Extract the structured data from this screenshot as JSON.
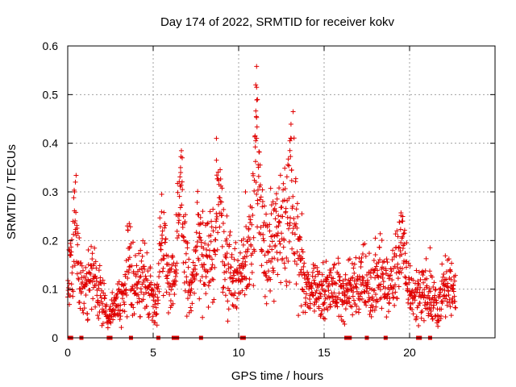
{
  "chart_data": {
    "type": "scatter",
    "title": "Day 174 of 2022, SRMTID for receiver kokv",
    "xlabel": "GPS time / hours",
    "ylabel": "SRMTID / TECUs",
    "xlim": [
      0,
      25
    ],
    "ylim": [
      0,
      0.6
    ],
    "xticks": [
      0,
      5,
      10,
      15,
      20
    ],
    "xtick_labels": [
      "0",
      "5",
      "10",
      "15",
      "20"
    ],
    "yticks": [
      0,
      0.1,
      0.2,
      0.3,
      0.4,
      0.5,
      0.6
    ],
    "ytick_labels": [
      "0",
      "0.1",
      "0.2",
      "0.3",
      "0.4",
      "0.5",
      "0.6"
    ],
    "grid": true,
    "marker": "plus",
    "color": "#e00000",
    "zero_value_hours": [
      0.1,
      0.2,
      0.8,
      2.4,
      2.5,
      3.7,
      5.3,
      6.2,
      6.4,
      7.8,
      10.2,
      10.3,
      16.3,
      16.5,
      17.5,
      18.6,
      20.5,
      20.6,
      21.2
    ],
    "envelope": {
      "description": "approximate local mean and spread of the SRMTID series (TECUs)",
      "x": [
        0.0,
        0.3,
        0.5,
        0.7,
        1.0,
        1.5,
        2.0,
        2.3,
        2.8,
        3.3,
        3.6,
        4.0,
        4.5,
        4.9,
        5.2,
        5.5,
        5.9,
        6.3,
        6.6,
        6.9,
        7.2,
        7.6,
        8.0,
        8.5,
        8.8,
        9.3,
        9.8,
        10.3,
        10.8,
        11.0,
        11.3,
        11.8,
        12.3,
        12.8,
        13.1,
        13.5,
        13.9,
        14.3,
        14.8,
        15.3,
        15.8,
        16.3,
        16.8,
        17.3,
        17.8,
        18.3,
        18.8,
        19.2,
        19.5,
        19.9,
        20.3,
        20.8,
        21.2,
        21.6,
        22.0,
        22.4,
        22.7
      ],
      "mean": [
        0.09,
        0.16,
        0.26,
        0.1,
        0.1,
        0.12,
        0.09,
        0.05,
        0.07,
        0.08,
        0.16,
        0.1,
        0.13,
        0.09,
        0.07,
        0.22,
        0.13,
        0.12,
        0.3,
        0.17,
        0.08,
        0.2,
        0.13,
        0.17,
        0.3,
        0.15,
        0.12,
        0.14,
        0.24,
        0.4,
        0.2,
        0.18,
        0.2,
        0.25,
        0.3,
        0.18,
        0.09,
        0.11,
        0.1,
        0.1,
        0.1,
        0.09,
        0.11,
        0.13,
        0.09,
        0.13,
        0.1,
        0.14,
        0.2,
        0.11,
        0.08,
        0.1,
        0.08,
        0.06,
        0.1,
        0.11,
        0.1
      ],
      "spread": [
        0.02,
        0.06,
        0.05,
        0.03,
        0.03,
        0.04,
        0.03,
        0.02,
        0.02,
        0.03,
        0.05,
        0.03,
        0.04,
        0.03,
        0.02,
        0.05,
        0.04,
        0.04,
        0.06,
        0.06,
        0.02,
        0.06,
        0.04,
        0.05,
        0.07,
        0.05,
        0.03,
        0.04,
        0.06,
        0.1,
        0.07,
        0.05,
        0.06,
        0.07,
        0.08,
        0.05,
        0.03,
        0.03,
        0.03,
        0.02,
        0.03,
        0.03,
        0.03,
        0.04,
        0.03,
        0.04,
        0.03,
        0.04,
        0.04,
        0.03,
        0.03,
        0.03,
        0.03,
        0.02,
        0.03,
        0.03,
        0.03
      ]
    },
    "peaks": [
      {
        "x": 0.45,
        "y": 0.32
      },
      {
        "x": 0.4,
        "y": 0.3
      },
      {
        "x": 3.6,
        "y": 0.235
      },
      {
        "x": 5.5,
        "y": 0.295
      },
      {
        "x": 6.7,
        "y": 0.37
      },
      {
        "x": 6.6,
        "y": 0.35
      },
      {
        "x": 7.9,
        "y": 0.26
      },
      {
        "x": 8.7,
        "y": 0.41
      },
      {
        "x": 8.7,
        "y": 0.365
      },
      {
        "x": 10.4,
        "y": 0.3
      },
      {
        "x": 11.05,
        "y": 0.558
      },
      {
        "x": 11.0,
        "y": 0.52
      },
      {
        "x": 11.05,
        "y": 0.515
      },
      {
        "x": 11.1,
        "y": 0.49
      },
      {
        "x": 11.05,
        "y": 0.453
      },
      {
        "x": 11.05,
        "y": 0.41
      },
      {
        "x": 11.0,
        "y": 0.405
      },
      {
        "x": 13.0,
        "y": 0.405
      },
      {
        "x": 13.0,
        "y": 0.385
      },
      {
        "x": 13.1,
        "y": 0.345
      },
      {
        "x": 13.7,
        "y": 0.255
      },
      {
        "x": 19.5,
        "y": 0.257
      },
      {
        "x": 19.6,
        "y": 0.24
      },
      {
        "x": 19.4,
        "y": 0.238
      },
      {
        "x": 18.0,
        "y": 0.205
      },
      {
        "x": 21.2,
        "y": 0.185
      }
    ]
  }
}
